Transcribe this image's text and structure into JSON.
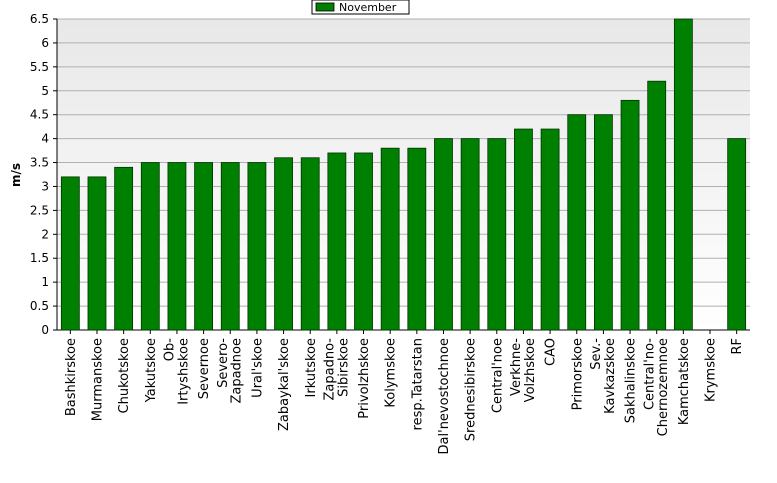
{
  "chart_data": {
    "type": "bar",
    "y_label": "m/s",
    "categories": [
      "Bashkirskoe",
      "Murmanskoe",
      "Chukotskoe",
      "Yakutskoe",
      "Ob-Irtyshskoe",
      "Severnoe",
      "Severo-Zapadnoe",
      "Ural'skoe",
      "Zabaykal'skoe",
      "Irkutskoe",
      "Zapadno-Sibirskoe",
      "Privolzhskoe",
      "Kolymskoe",
      "resp.Tatarstan",
      "Dal'nevostochnoe",
      "Srednesibirskoe",
      "Central'noe",
      "Verkhne-Volzhskoe",
      "CAO",
      "Primorskoe",
      "Sev.-Kavkazskoe",
      "Sakhalinskoe",
      "Central'no-Chernozemnoe",
      "Kamchatskoe",
      "Krymskoe",
      "RF"
    ],
    "series": [
      {
        "name": "November",
        "color": "#008000",
        "values": [
          3.2,
          3.2,
          3.4,
          3.5,
          3.5,
          3.5,
          3.5,
          3.5,
          3.6,
          3.6,
          3.7,
          3.7,
          3.8,
          3.8,
          4.0,
          4.0,
          4.0,
          4.2,
          4.2,
          4.5,
          4.5,
          4.8,
          5.2,
          6.5,
          null,
          4.0
        ]
      }
    ],
    "ylim": [
      0,
      6.5
    ],
    "yticks": [
      0,
      0.5,
      1,
      1.5,
      2,
      2.5,
      3,
      3.5,
      4,
      4.5,
      5,
      5.5,
      6,
      6.5
    ],
    "grid": true,
    "legend": "top"
  }
}
